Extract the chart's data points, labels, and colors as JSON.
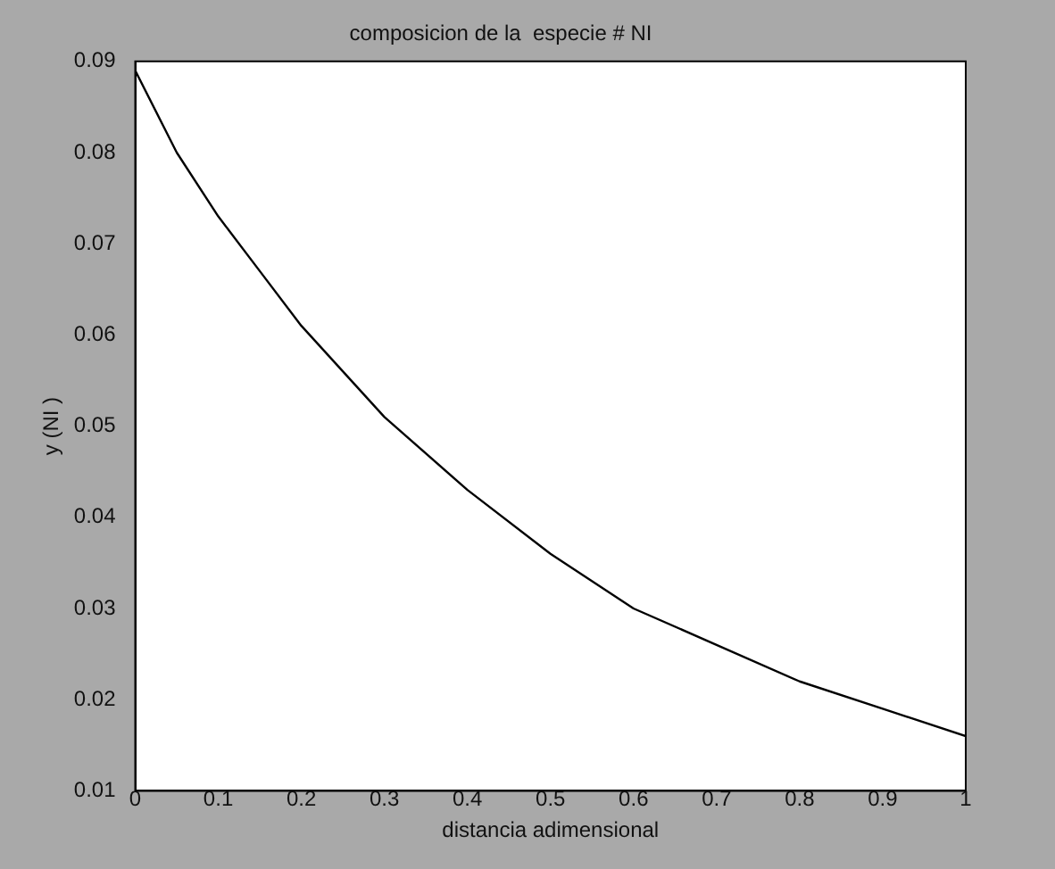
{
  "chart_data": {
    "type": "line",
    "title": "composicion de la  especie # NI",
    "xlabel": "distancia adimensional",
    "ylabel": "y (NI )",
    "x": [
      0,
      0.05,
      0.1,
      0.15,
      0.2,
      0.3,
      0.4,
      0.5,
      0.6,
      0.7,
      0.8,
      0.9,
      1
    ],
    "series": [
      {
        "color": "#000000",
        "values": [
          0.089,
          0.08,
          0.073,
          0.067,
          0.061,
          0.051,
          0.043,
          0.036,
          0.03,
          0.026,
          0.022,
          0.019,
          0.016
        ]
      }
    ],
    "xlim": [
      0,
      1
    ],
    "xticks": [
      0,
      0.1,
      0.2,
      0.3,
      0.4,
      0.5,
      0.6,
      0.7,
      0.8,
      0.9,
      1
    ],
    "ylim": [
      0.01,
      0.09
    ],
    "yticks": [
      0.01,
      0.02,
      0.03,
      0.04,
      0.05,
      0.06,
      0.07,
      0.08,
      0.09
    ],
    "grid": false,
    "legend": false,
    "marker": "none",
    "line_style": "solid"
  }
}
